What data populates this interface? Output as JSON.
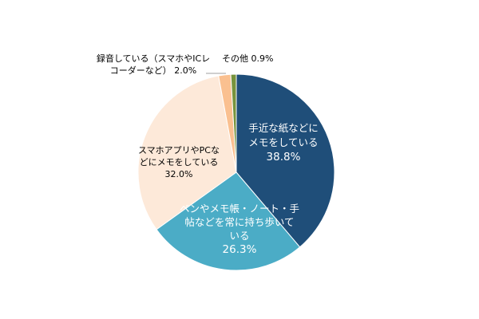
{
  "chart_data": {
    "type": "pie",
    "title": "",
    "start": "12 o'clock",
    "direction": "clockwise",
    "slices": [
      {
        "label_lines": [
          "手近な紙などに",
          "メモをしている"
        ],
        "value": 38.8,
        "value_text": "38.8%",
        "color": "#1f4e79",
        "text_color": "#ffffff",
        "label_position": "inside"
      },
      {
        "label_lines": [
          "ペンやメモ帳・ノート・手",
          "帖などを常に持ち歩いて",
          "いる"
        ],
        "value": 26.3,
        "value_text": "26.3%",
        "color": "#4bacc6",
        "text_color": "#ffffff",
        "label_position": "inside"
      },
      {
        "label_lines": [
          "スマホアプリやPCな",
          "どにメモをしている"
        ],
        "value": 32.0,
        "value_text": "32.0%",
        "color": "#fde9d9",
        "text_color": "#000000",
        "label_position": "inside"
      },
      {
        "label_lines": [
          "録音している（スマホやICレ",
          "コーダーなど）"
        ],
        "value": 2.0,
        "value_text": "2.0%",
        "color": "#fac090",
        "text_color": "#000000",
        "label_position": "outside with leader line"
      },
      {
        "label_lines": [
          "その他"
        ],
        "value": 0.9,
        "value_text": "0.9%",
        "color": "#77933c",
        "text_color": "#000000",
        "label_position": "outside with leader line"
      }
    ]
  }
}
